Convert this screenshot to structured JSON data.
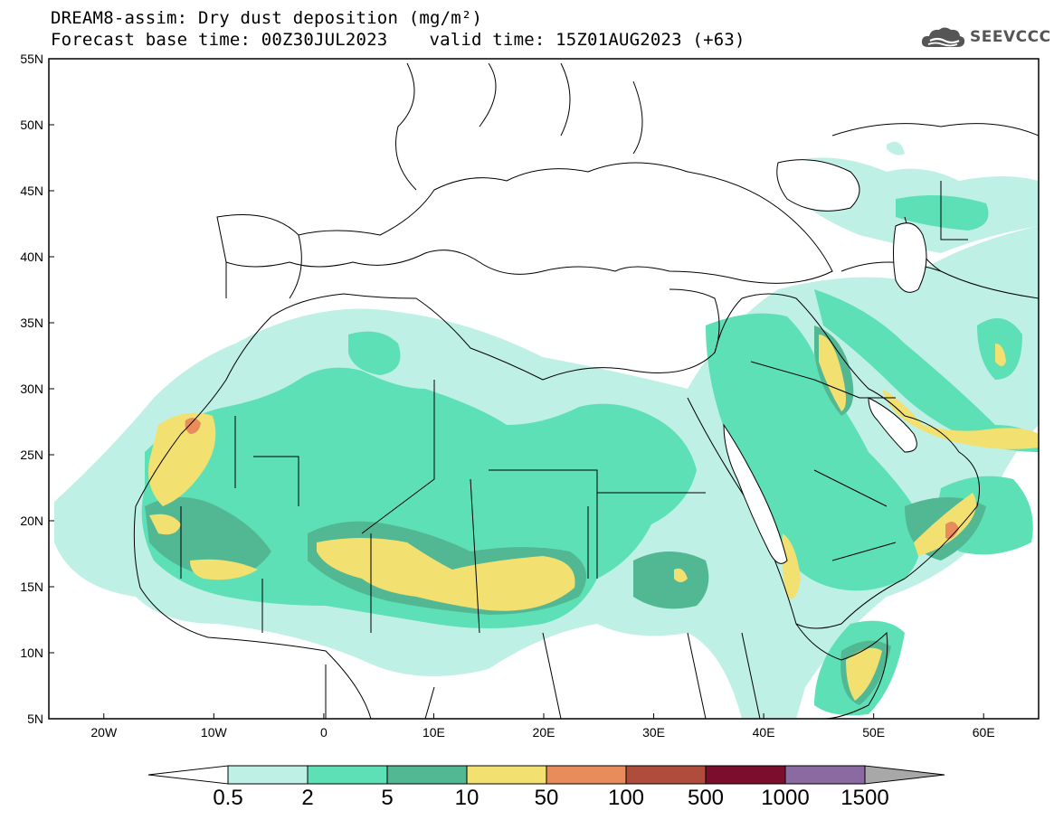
{
  "header": {
    "title": "DREAM8-assim: Dry dust deposition (mg/m²)",
    "base_time": "Forecast base time: 00Z30JUL2023",
    "valid_time": "valid time: 15Z01AUG2023 (+63)"
  },
  "logo": {
    "text": "SEEVCCC",
    "icon": "cloud-logo-icon",
    "color": "#555555"
  },
  "map": {
    "lon_range": [
      -25,
      65
    ],
    "lat_range": [
      5,
      55
    ],
    "lat_ticks": [
      "5N",
      "10N",
      "15N",
      "20N",
      "25N",
      "30N",
      "35N",
      "40N",
      "45N",
      "50N",
      "55N"
    ],
    "lon_ticks": [
      "20W",
      "10W",
      "0",
      "10E",
      "20E",
      "30E",
      "40E",
      "50E",
      "60E"
    ]
  },
  "legend": {
    "labels": [
      "0.5",
      "2",
      "5",
      "10",
      "50",
      "100",
      "500",
      "1000",
      "1500"
    ],
    "colors": [
      "#bff0e6",
      "#5ee0b6",
      "#52b894",
      "#f2e070",
      "#e88c5c",
      "#b04c3c",
      "#7a0e2c",
      "#8a6aa0",
      "#a8a8a8"
    ],
    "under_color": "#ffffff"
  }
}
